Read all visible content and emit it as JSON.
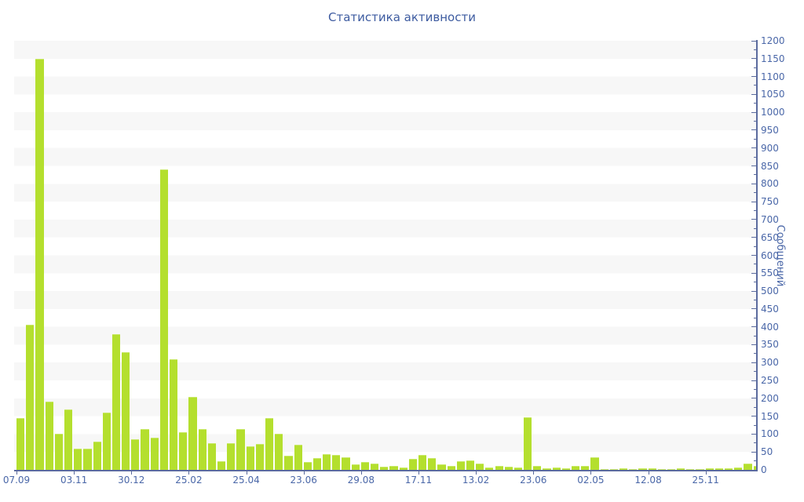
{
  "title": "Статистика активности",
  "chart_data": {
    "type": "bar",
    "title": "Статистика активности",
    "xlabel": "",
    "ylabel": "Сообщений",
    "ylim": [
      0,
      1200
    ],
    "y_tick_step": 50,
    "y_minor_tick_step": 25,
    "y_ticks": [
      0,
      50,
      100,
      150,
      200,
      250,
      300,
      350,
      400,
      450,
      500,
      550,
      600,
      650,
      700,
      750,
      800,
      850,
      900,
      950,
      1000,
      1050,
      1100,
      1150,
      1200
    ],
    "legend_position": "none",
    "grid": "alternating horizontal bands of 50 units",
    "bar_count": 78,
    "x_tick_labels": [
      {
        "bar_index": 0,
        "label": "07.09"
      },
      {
        "bar_index": 6,
        "label": "03.11"
      },
      {
        "bar_index": 12,
        "label": "30.12"
      },
      {
        "bar_index": 18,
        "label": "25.02"
      },
      {
        "bar_index": 24,
        "label": "25.04"
      },
      {
        "bar_index": 30,
        "label": "23.06"
      },
      {
        "bar_index": 36,
        "label": "29.08"
      },
      {
        "bar_index": 42,
        "label": "17.11"
      },
      {
        "bar_index": 48,
        "label": "13.02"
      },
      {
        "bar_index": 54,
        "label": "23.06"
      },
      {
        "bar_index": 60,
        "label": "02.05"
      },
      {
        "bar_index": 66,
        "label": "12.08"
      },
      {
        "bar_index": 72,
        "label": "25.11"
      }
    ],
    "values": [
      145,
      405,
      1150,
      190,
      100,
      170,
      60,
      60,
      80,
      160,
      380,
      330,
      85,
      115,
      90,
      840,
      310,
      105,
      205,
      115,
      75,
      25,
      75,
      115,
      65,
      72,
      145,
      102,
      40,
      70,
      22,
      32,
      45,
      42,
      36,
      15,
      22,
      18,
      8,
      11,
      7,
      30,
      42,
      34,
      15,
      11,
      24,
      27,
      17,
      6,
      11,
      9,
      6,
      148,
      12,
      4,
      7,
      4,
      10,
      12,
      35,
      3,
      3,
      4,
      3,
      4,
      4,
      3,
      3,
      4,
      3,
      3,
      4,
      4,
      5,
      6,
      18,
      10
    ]
  },
  "colors": {
    "bar": "#b4df2e",
    "bar_highlight": "#c9e96a",
    "axis_line": "#5b6b9e",
    "tick_text": "#4a67a8",
    "title_text": "#3d5ba0",
    "stripe": "#f7f7f7",
    "background": "#ffffff"
  }
}
